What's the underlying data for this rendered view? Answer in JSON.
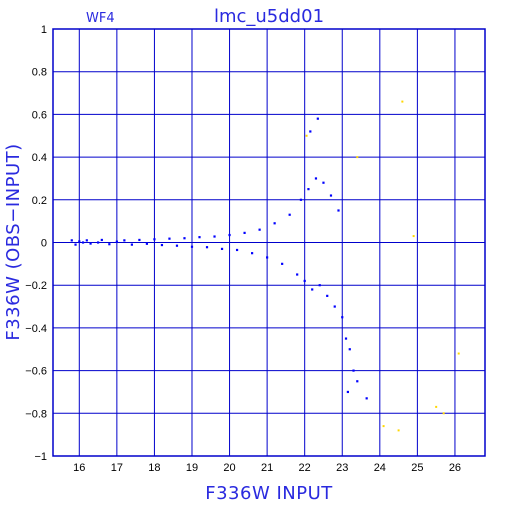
{
  "chart_data": {
    "type": "scatter",
    "panel_label": "WF4",
    "title": "lmc_u5dd01",
    "xlabel": "F336W INPUT",
    "ylabel": "F336W (OBS−INPUT)",
    "xlim": [
      15.3,
      26.8
    ],
    "ylim": [
      -1,
      1
    ],
    "x_ticks": [
      "16",
      "17",
      "18",
      "19",
      "20",
      "21",
      "22",
      "23",
      "24",
      "25",
      "26"
    ],
    "y_ticks": [
      "1",
      "0.8",
      "0.6",
      "0.4",
      "0.2",
      "0",
      "−0.2",
      "−0.4",
      "−0.6",
      "−0.8",
      "−1"
    ],
    "grid": true,
    "colors": {
      "main": "#0000ff",
      "outlier": "#ffd700",
      "frame": "#0000cc",
      "text": "#2a2adf"
    },
    "series": [
      {
        "color": "main",
        "points": [
          [
            15.8,
            0.01
          ],
          [
            15.9,
            -0.01
          ],
          [
            16.0,
            0.005
          ],
          [
            16.1,
            0.0
          ],
          [
            16.2,
            0.01
          ],
          [
            16.3,
            -0.005
          ],
          [
            16.5,
            0.0
          ],
          [
            16.6,
            0.012
          ],
          [
            16.8,
            -0.008
          ],
          [
            17.0,
            0.004
          ],
          [
            17.2,
            0.01
          ],
          [
            17.4,
            -0.01
          ],
          [
            17.6,
            0.012
          ],
          [
            17.8,
            -0.006
          ],
          [
            18.0,
            0.015
          ],
          [
            18.2,
            -0.012
          ],
          [
            18.4,
            0.018
          ],
          [
            18.6,
            -0.015
          ],
          [
            18.8,
            0.02
          ],
          [
            19.0,
            -0.02
          ],
          [
            19.2,
            0.025
          ],
          [
            19.4,
            -0.022
          ],
          [
            19.6,
            0.028
          ],
          [
            19.8,
            -0.03
          ],
          [
            20.0,
            0.035
          ],
          [
            20.2,
            -0.035
          ],
          [
            20.4,
            0.045
          ],
          [
            20.6,
            -0.05
          ],
          [
            20.8,
            0.06
          ],
          [
            21.0,
            -0.07
          ],
          [
            21.2,
            0.09
          ],
          [
            21.4,
            -0.1
          ],
          [
            21.6,
            0.13
          ],
          [
            21.8,
            -0.15
          ],
          [
            21.9,
            0.2
          ],
          [
            22.0,
            -0.18
          ],
          [
            22.1,
            0.25
          ],
          [
            22.2,
            -0.22
          ],
          [
            22.3,
            0.3
          ],
          [
            22.4,
            -0.2
          ],
          [
            22.5,
            0.28
          ],
          [
            22.6,
            -0.25
          ],
          [
            22.7,
            0.22
          ],
          [
            22.8,
            -0.3
          ],
          [
            22.9,
            0.15
          ],
          [
            23.0,
            -0.35
          ],
          [
            23.1,
            -0.45
          ],
          [
            23.2,
            -0.5
          ],
          [
            23.3,
            -0.6
          ],
          [
            23.4,
            -0.65
          ],
          [
            22.35,
            0.58
          ],
          [
            22.15,
            0.52
          ],
          [
            23.15,
            -0.7
          ],
          [
            23.65,
            -0.73
          ]
        ]
      },
      {
        "color": "outlier",
        "points": [
          [
            24.6,
            0.66
          ],
          [
            23.4,
            0.4
          ],
          [
            22.05,
            0.5
          ],
          [
            24.9,
            0.03
          ],
          [
            26.1,
            -0.52
          ],
          [
            25.5,
            -0.77
          ],
          [
            24.1,
            -0.86
          ],
          [
            24.5,
            -0.88
          ],
          [
            25.7,
            -0.8
          ]
        ]
      }
    ]
  }
}
